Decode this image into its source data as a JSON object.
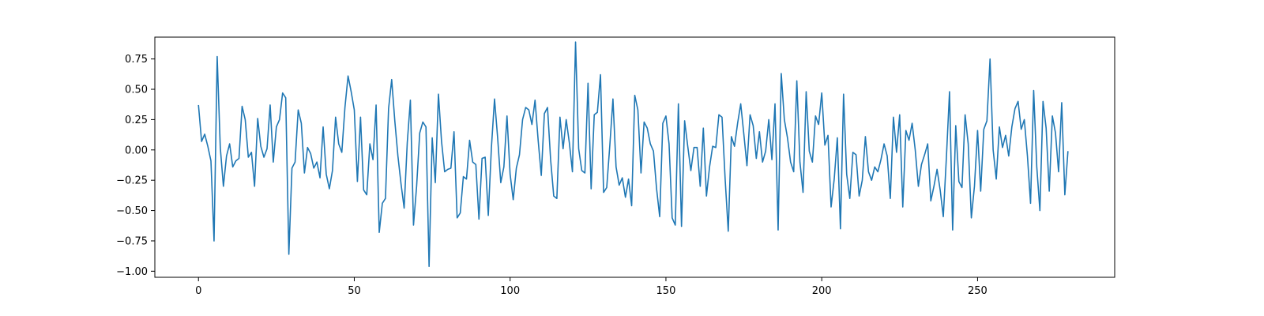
{
  "chart_data": {
    "type": "line",
    "title": "",
    "xlabel": "",
    "ylabel": "",
    "xlim": [
      -14,
      294
    ],
    "ylim": [
      -1.05,
      0.93
    ],
    "x_ticks": [
      0,
      50,
      100,
      150,
      200,
      250
    ],
    "y_ticks": [
      -1.0,
      -0.75,
      -0.5,
      -0.25,
      0.0,
      0.25,
      0.5,
      0.75
    ],
    "x_tick_labels": [
      "0",
      "50",
      "100",
      "150",
      "200",
      "250"
    ],
    "y_tick_labels": [
      "−1.00",
      "−0.75",
      "−0.50",
      "−0.25",
      "0.00",
      "0.25",
      "0.50",
      "0.75"
    ],
    "grid": false,
    "legend": "none",
    "series": [
      {
        "color": "#1f77b4",
        "x_start": 0,
        "x_step": 1,
        "values": [
          0.37,
          0.07,
          0.13,
          0.03,
          -0.09,
          -0.75,
          0.77,
          0.02,
          -0.3,
          -0.05,
          0.05,
          -0.14,
          -0.09,
          -0.07,
          0.36,
          0.25,
          -0.06,
          -0.02,
          -0.3,
          0.26,
          0.03,
          -0.06,
          0.01,
          0.37,
          -0.1,
          0.19,
          0.25,
          0.47,
          0.43,
          -0.86,
          -0.15,
          -0.1,
          0.33,
          0.22,
          -0.19,
          0.02,
          -0.03,
          -0.15,
          -0.1,
          -0.23,
          0.19,
          -0.2,
          -0.32,
          -0.17,
          0.27,
          0.05,
          -0.02,
          0.35,
          0.61,
          0.48,
          0.33,
          -0.26,
          0.27,
          -0.33,
          -0.37,
          0.05,
          -0.08,
          0.37,
          -0.68,
          -0.44,
          -0.4,
          0.34,
          0.58,
          0.24,
          -0.05,
          -0.28,
          -0.48,
          0.06,
          0.41,
          -0.62,
          -0.3,
          0.14,
          0.23,
          0.19,
          -0.96,
          0.1,
          -0.27,
          0.46,
          0.07,
          -0.18,
          -0.16,
          -0.15,
          0.15,
          -0.56,
          -0.52,
          -0.22,
          -0.24,
          0.08,
          -0.1,
          -0.12,
          -0.57,
          -0.07,
          -0.06,
          -0.54,
          0.02,
          0.42,
          0.1,
          -0.27,
          -0.14,
          0.28,
          -0.2,
          -0.41,
          -0.15,
          -0.04,
          0.25,
          0.35,
          0.33,
          0.21,
          0.41,
          0.08,
          -0.21,
          0.3,
          0.35,
          -0.08,
          -0.38,
          -0.4,
          0.27,
          0.01,
          0.25,
          0.06,
          -0.18,
          0.89,
          0.01,
          -0.17,
          -0.19,
          0.55,
          -0.32,
          0.29,
          0.31,
          0.62,
          -0.35,
          -0.31,
          0.04,
          0.42,
          -0.14,
          -0.29,
          -0.23,
          -0.39,
          -0.24,
          -0.46,
          0.45,
          0.33,
          -0.19,
          0.23,
          0.18,
          0.05,
          -0.01,
          -0.32,
          -0.55,
          0.22,
          0.28,
          0.05,
          -0.56,
          -0.62,
          0.38,
          -0.63,
          0.24,
          0.03,
          -0.17,
          0.02,
          0.02,
          -0.3,
          0.18,
          -0.38,
          -0.14,
          0.03,
          0.02,
          0.29,
          0.27,
          -0.24,
          -0.67,
          0.11,
          0.03,
          0.22,
          0.38,
          0.13,
          -0.13,
          0.29,
          0.2,
          -0.07,
          0.15,
          -0.1,
          -0.01,
          0.25,
          -0.08,
          0.38,
          -0.66,
          0.63,
          0.25,
          0.1,
          -0.1,
          -0.18,
          0.57,
          -0.1,
          -0.35,
          0.48,
          -0.01,
          -0.1,
          0.28,
          0.21,
          0.47,
          0.04,
          0.12,
          -0.47,
          -0.24,
          0.1,
          -0.65,
          0.46,
          -0.2,
          -0.4,
          -0.02,
          -0.04,
          -0.38,
          -0.25,
          0.11,
          -0.18,
          -0.25,
          -0.14,
          -0.18,
          -0.08,
          0.05,
          -0.05,
          -0.4,
          0.27,
          -0.02,
          0.29,
          -0.47,
          0.16,
          0.08,
          0.22,
          0.0,
          -0.3,
          -0.12,
          -0.04,
          0.05,
          -0.42,
          -0.3,
          -0.16,
          -0.33,
          -0.55,
          -0.06,
          0.48,
          -0.66,
          0.2,
          -0.26,
          -0.31,
          0.29,
          0.05,
          -0.56,
          -0.3,
          0.16,
          -0.34,
          0.17,
          0.24,
          0.75,
          0.0,
          -0.24,
          0.19,
          0.02,
          0.12,
          -0.05,
          0.19,
          0.34,
          0.4,
          0.17,
          0.25,
          -0.05,
          -0.44,
          0.49,
          -0.14,
          -0.5,
          0.4,
          0.18,
          -0.34,
          0.28,
          0.14,
          -0.18,
          0.39,
          -0.37,
          -0.01
        ]
      }
    ]
  }
}
